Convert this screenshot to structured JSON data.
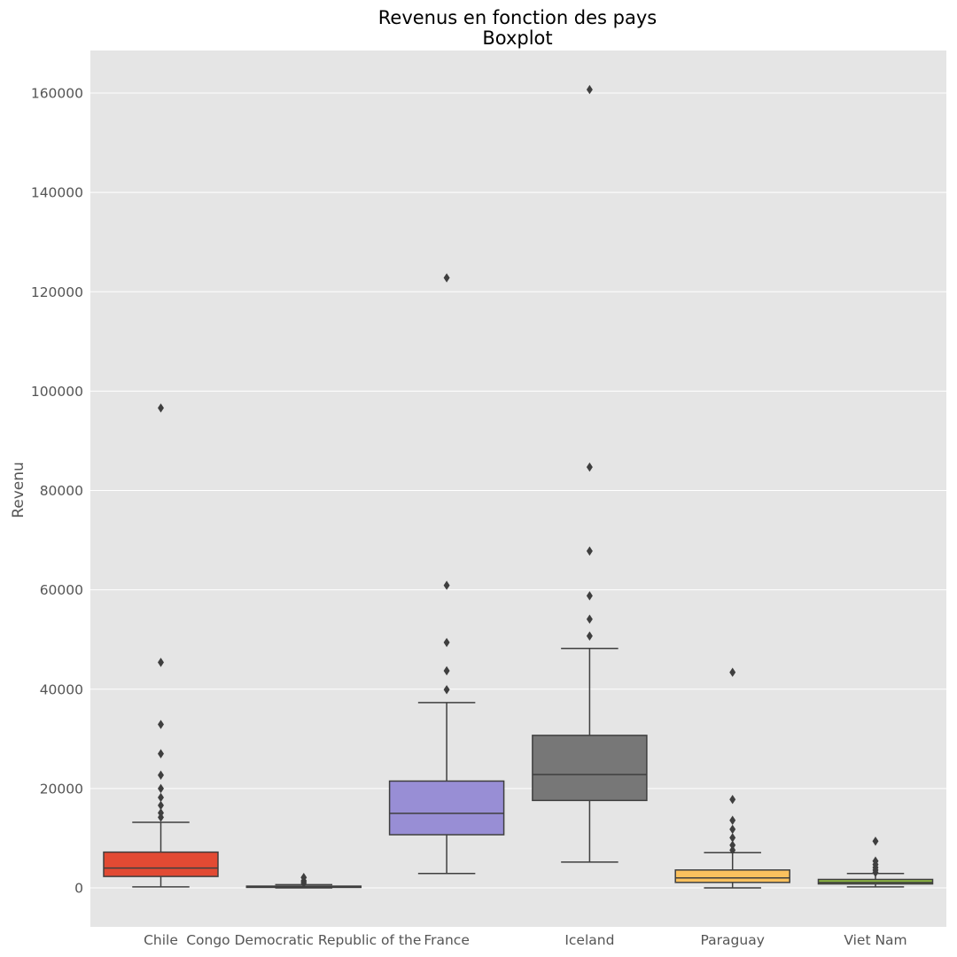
{
  "chart_data": {
    "type": "boxplot",
    "title": "Revenus en fonction des pays",
    "subtitle": "Boxplot",
    "xlabel": "",
    "ylabel": "Revenu",
    "ylim": [
      -8000,
      168000
    ],
    "yticks": [
      0,
      20000,
      40000,
      60000,
      80000,
      100000,
      120000,
      140000,
      160000
    ],
    "grid": true,
    "categories": [
      "Chile",
      "Congo Democratic Republic of the",
      "France",
      "Iceland",
      "Paraguay",
      "Viet Nam"
    ],
    "boxes": [
      {
        "name": "Chile",
        "color": "#e24a33",
        "whisker_low": 200,
        "q1": 2300,
        "median": 4000,
        "q3": 7200,
        "whisker_high": 13200,
        "outliers": [
          14200,
          15100,
          16600,
          18200,
          20000,
          22700,
          27000,
          32900,
          45400,
          96600
        ]
      },
      {
        "name": "Congo Democratic Republic of the",
        "color": "#348abd",
        "whisker_low": 0,
        "q1": 100,
        "median": 200,
        "q3": 350,
        "whisker_high": 650,
        "outliers": [
          1000,
          1400,
          2100
        ]
      },
      {
        "name": "France",
        "color": "#988ed5",
        "whisker_low": 2900,
        "q1": 10700,
        "median": 15000,
        "q3": 21500,
        "whisker_high": 37300,
        "outliers": [
          39900,
          43700,
          49400,
          60900,
          122800
        ]
      },
      {
        "name": "Iceland",
        "color": "#777777",
        "whisker_low": 5200,
        "q1": 17600,
        "median": 22800,
        "q3": 30700,
        "whisker_high": 48200,
        "outliers": [
          50700,
          54100,
          58800,
          67800,
          84700,
          160700
        ]
      },
      {
        "name": "Paraguay",
        "color": "#fbc15e",
        "whisker_low": 0,
        "q1": 1100,
        "median": 2000,
        "q3": 3600,
        "whisker_high": 7100,
        "outliers": [
          7600,
          8600,
          10100,
          11800,
          13600,
          17800,
          43400
        ]
      },
      {
        "name": "Viet Nam",
        "color": "#8eba42",
        "whisker_low": 200,
        "q1": 800,
        "median": 1100,
        "q3": 1700,
        "whisker_high": 2900,
        "outliers": [
          3100,
          3600,
          4100,
          4700,
          5400,
          9400
        ]
      }
    ]
  },
  "colors": {
    "plot_background": "#e5e5e5",
    "grid": "#ffffff",
    "edge": "#3f3f3f"
  }
}
